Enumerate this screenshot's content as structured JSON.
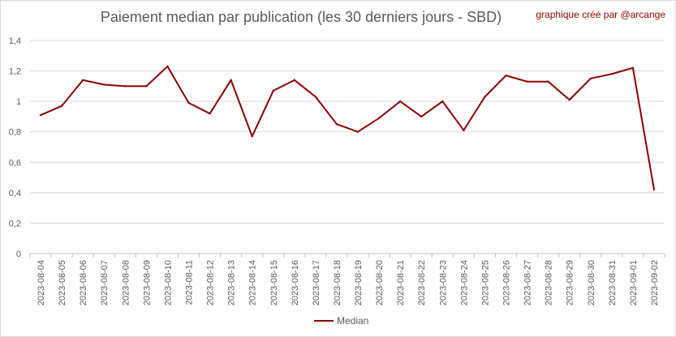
{
  "credit": "graphique créé par @arcange",
  "chart_data": {
    "type": "line",
    "title": "Paiement median par publication (les 30 derniers jours - SBD)",
    "xlabel": "",
    "ylabel": "",
    "ylim": [
      0,
      1.4
    ],
    "yticks": [
      "0",
      "0,2",
      "0,4",
      "0,6",
      "0,8",
      "1",
      "1,2",
      "1,4"
    ],
    "grid": true,
    "legend_position": "bottom",
    "categories": [
      "2023-08-04",
      "2023-08-05",
      "2023-08-06",
      "2023-08-07",
      "2023-08-08",
      "2023-08-09",
      "2023-08-10",
      "2023-08-11",
      "2023-08-12",
      "2023-08-13",
      "2023-08-14",
      "2023-08-15",
      "2023-08-16",
      "2023-08-17",
      "2023-08-18",
      "2023-08-19",
      "2023-08-20",
      "2023-08-21",
      "2023-08-22",
      "2023-08-23",
      "2023-08-24",
      "2023-08-25",
      "2023-08-26",
      "2023-08-27",
      "2023-08-28",
      "2023-08-29",
      "2023-08-30",
      "2023-08-31",
      "2023-09-01",
      "2023-09-02"
    ],
    "series": [
      {
        "name": "Median",
        "color": "#8b0000",
        "values": [
          0.91,
          0.97,
          1.14,
          1.11,
          1.1,
          1.1,
          1.23,
          0.99,
          0.92,
          1.14,
          0.77,
          1.07,
          1.14,
          1.03,
          0.85,
          0.8,
          0.89,
          1.0,
          0.9,
          1.0,
          0.81,
          1.03,
          1.17,
          1.13,
          1.13,
          1.01,
          1.15,
          1.18,
          1.22,
          0.42
        ]
      }
    ]
  }
}
